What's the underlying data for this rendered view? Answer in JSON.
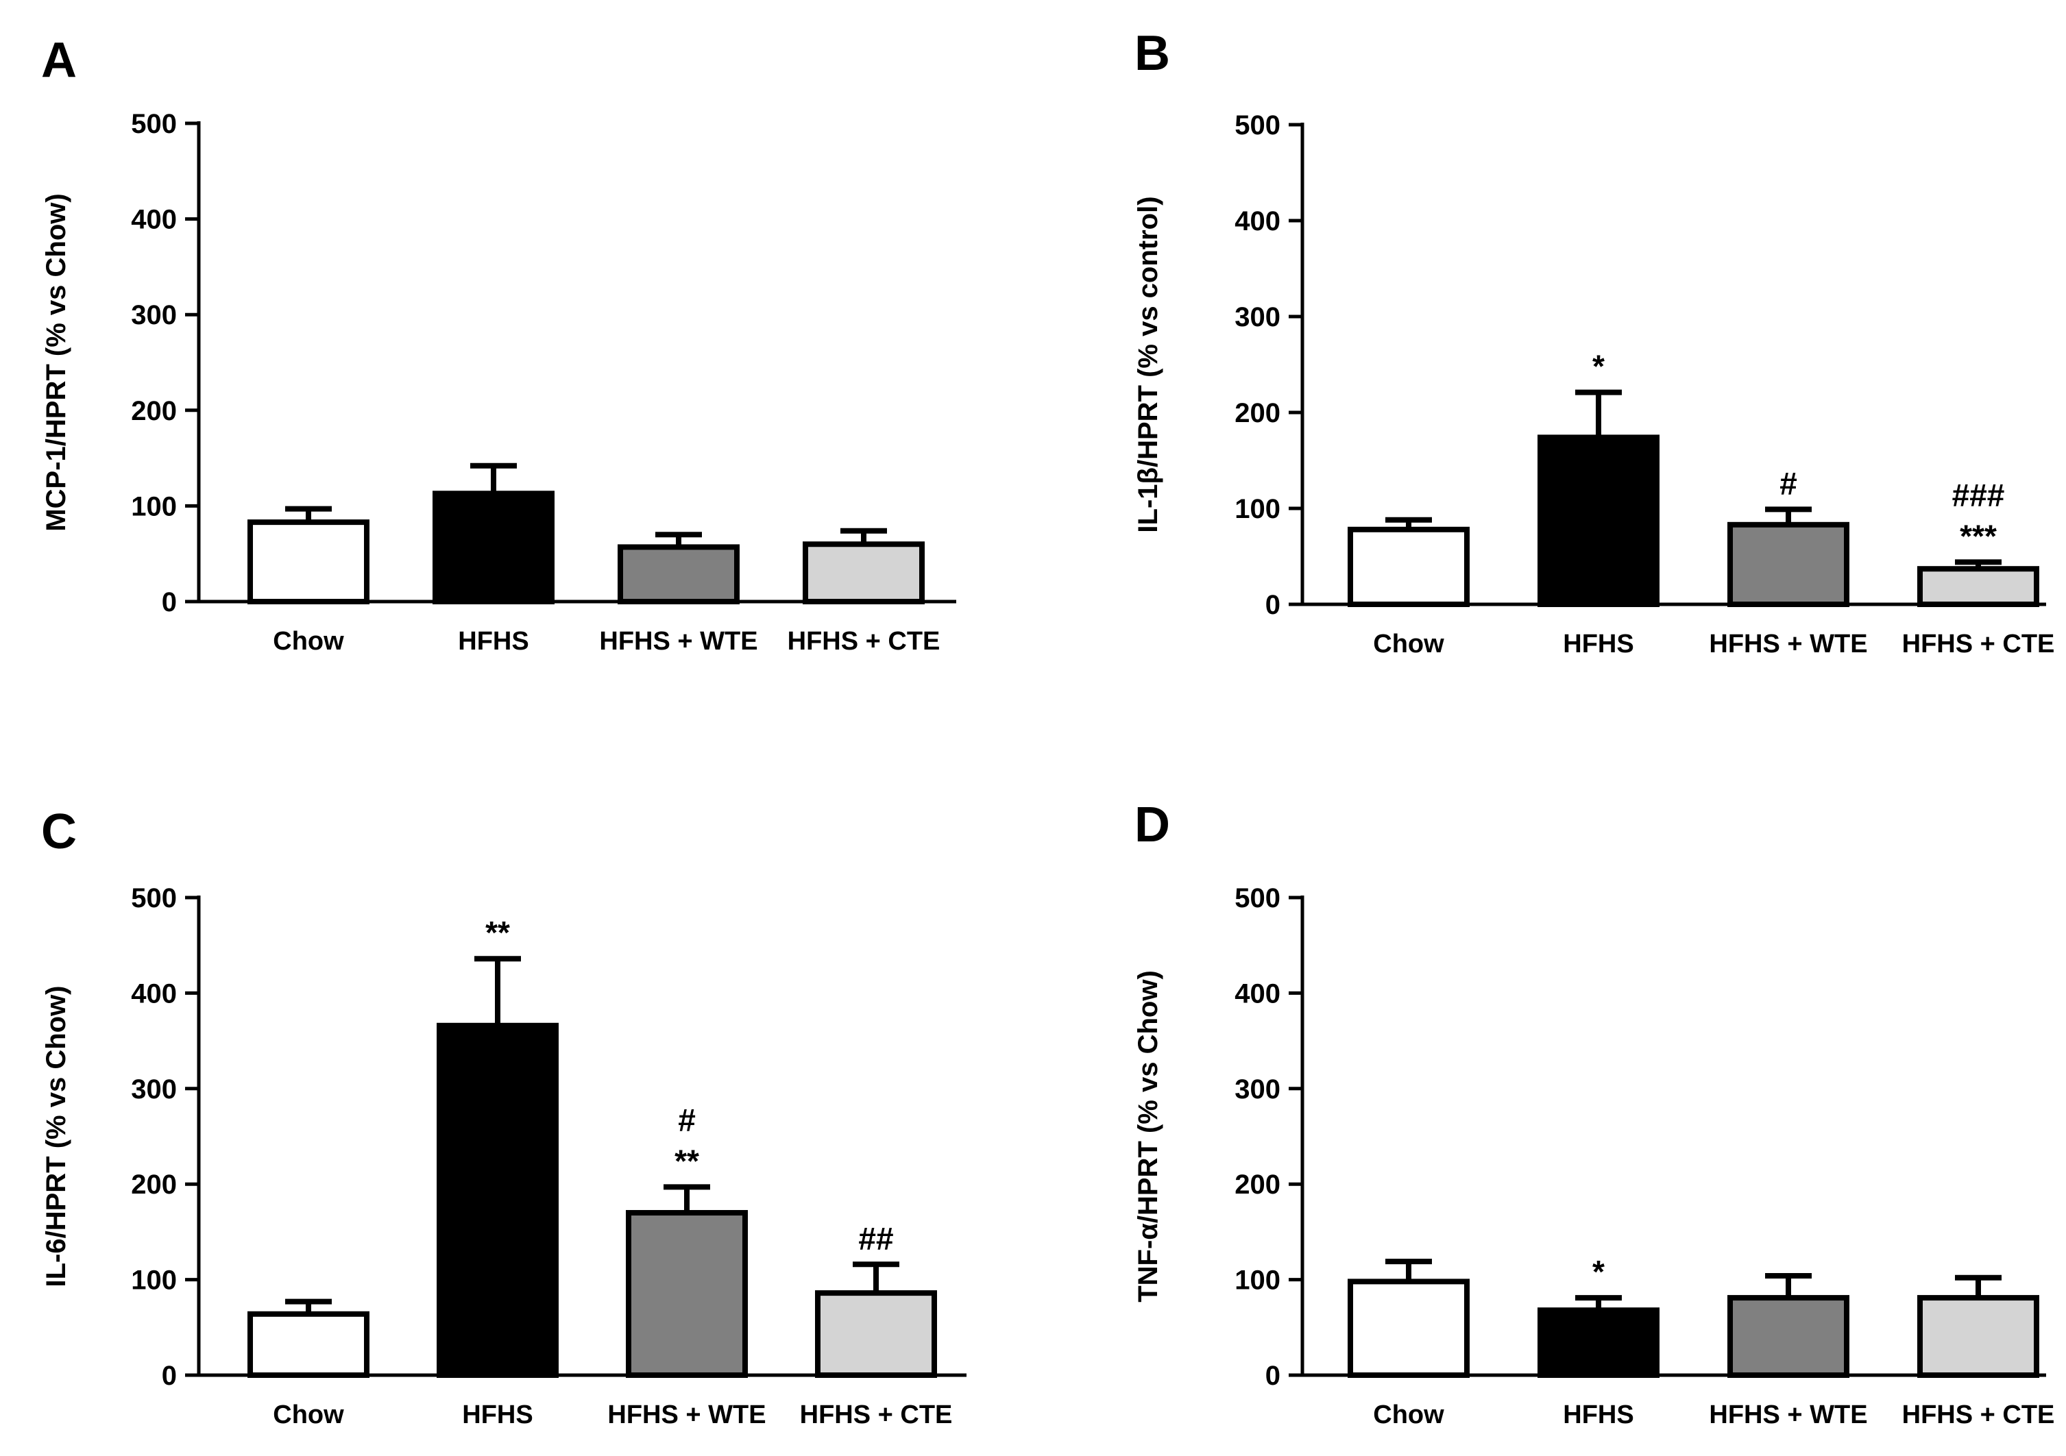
{
  "figure": {
    "colors": {
      "Chow": "#ffffff",
      "HFHS": "#000000",
      "HFHS + WTE": "#808080",
      "HFHS + CTE": "#d4d4d4",
      "axis": "#000000"
    }
  },
  "chart_data": [
    {
      "panel": "A",
      "type": "bar",
      "title": "",
      "ylabel": "MCP-1/HPRT (% vs Chow)",
      "xlabel": "",
      "ylim": [
        0,
        500
      ],
      "yticks": [
        "0",
        "100",
        "200",
        "300",
        "400",
        "500"
      ],
      "categories": [
        "Chow",
        "HFHS",
        "HFHS + WTE",
        "HFHS + CTE"
      ],
      "values": [
        83,
        113,
        57,
        60
      ],
      "errors": [
        14,
        29,
        13,
        14
      ],
      "annotations": [
        [],
        [],
        [],
        []
      ]
    },
    {
      "panel": "B",
      "type": "bar",
      "title": "",
      "ylabel": "IL-1β/HPRT (% vs control)",
      "xlabel": "",
      "ylim": [
        0,
        500
      ],
      "yticks": [
        "0",
        "100",
        "200",
        "300",
        "400",
        "500"
      ],
      "categories": [
        "Chow",
        "HFHS",
        "HFHS + WTE",
        "HFHS + CTE"
      ],
      "values": [
        78,
        174,
        83,
        37
      ],
      "errors": [
        10,
        47,
        16,
        7
      ],
      "annotations": [
        [],
        [
          "*"
        ],
        [
          "#"
        ],
        [
          "###",
          "***"
        ]
      ]
    },
    {
      "panel": "C",
      "type": "bar",
      "title": "",
      "ylabel": "IL-6/HPRT (% vs Chow)",
      "xlabel": "",
      "ylim": [
        0,
        500
      ],
      "yticks": [
        "0",
        "100",
        "200",
        "300",
        "400",
        "500"
      ],
      "categories": [
        "Chow",
        "HFHS",
        "HFHS + WTE",
        "HFHS + CTE"
      ],
      "values": [
        64,
        366,
        170,
        86
      ],
      "errors": [
        13,
        70,
        27,
        30
      ],
      "annotations": [
        [],
        [
          "**"
        ],
        [
          "#",
          "**"
        ],
        [
          "##"
        ]
      ]
    },
    {
      "panel": "D",
      "type": "bar",
      "title": "",
      "ylabel": "TNF-α/HPRT (% vs Chow)",
      "xlabel": "",
      "ylim": [
        0,
        500
      ],
      "yticks": [
        "0",
        "100",
        "200",
        "300",
        "400",
        "500"
      ],
      "categories": [
        "Chow",
        "HFHS",
        "HFHS + WTE",
        "HFHS + CTE"
      ],
      "values": [
        98,
        68,
        81,
        81
      ],
      "errors": [
        21,
        13,
        23,
        21
      ],
      "annotations": [
        [],
        [
          "*"
        ],
        [],
        []
      ]
    }
  ]
}
